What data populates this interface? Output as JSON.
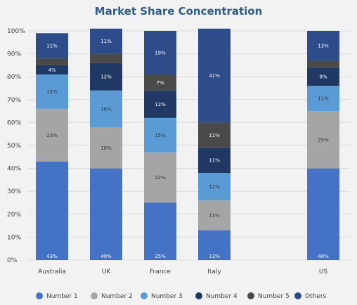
{
  "chart_data": {
    "type": "bar",
    "stacked": true,
    "title": "Market Share Concentration",
    "categories": [
      "Australia",
      "UK",
      "France",
      "Italy",
      "",
      "US"
    ],
    "series": [
      {
        "name": "Number 1",
        "color": "#4472c4",
        "values": [
          43,
          40,
          25,
          13,
          null,
          40
        ]
      },
      {
        "name": "Number 2",
        "color": "#a5a5a5",
        "values": [
          23,
          18,
          22,
          13,
          null,
          25
        ]
      },
      {
        "name": "Number 3",
        "color": "#5b9bd5",
        "values": [
          15,
          16,
          15,
          12,
          null,
          11
        ]
      },
      {
        "name": "Number 4",
        "color": "#203864",
        "values": [
          4,
          12,
          12,
          11,
          null,
          8
        ]
      },
      {
        "name": "Number 5",
        "color": "#4a4a4a",
        "values": [
          3,
          4,
          7,
          11,
          null,
          3
        ]
      },
      {
        "name": "Others",
        "color": "#2e4b8a",
        "values": [
          11,
          11,
          19,
          41,
          null,
          13
        ]
      }
    ],
    "data_labels": [
      [
        "43%",
        "23%",
        "15%",
        "4%",
        "",
        "11%"
      ],
      [
        "40%",
        "18%",
        "16%",
        "12%",
        "",
        "11%"
      ],
      [
        "25%",
        "22%",
        "15%",
        "12%",
        "7%",
        "19%"
      ],
      [
        "13%",
        "13%",
        "12%",
        "11%",
        "11%",
        "41%"
      ],
      [
        "",
        "",
        "",
        "",
        "",
        ""
      ],
      [
        "40%",
        "25%",
        "11%",
        "8%",
        "",
        "13%"
      ]
    ],
    "y_ticks": [
      "0%",
      "10%",
      "20%",
      "30%",
      "40%",
      "50%",
      "60%",
      "70%",
      "80%",
      "90%",
      "100%"
    ],
    "ylim": [
      0,
      100
    ],
    "grid": true,
    "legend_position": "bottom"
  }
}
